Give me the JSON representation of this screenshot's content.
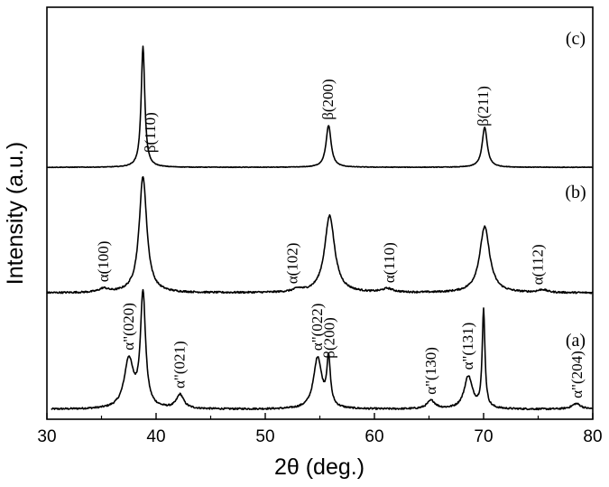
{
  "chart_data": {
    "type": "line",
    "xlabel": "2θ (deg.)",
    "ylabel": "Intensity (a.u.)",
    "xlim": [
      30,
      80
    ],
    "xticks": [
      30,
      40,
      50,
      60,
      70,
      80
    ],
    "xtick_labels": [
      "30",
      "40",
      "50",
      "60",
      "70",
      "80"
    ],
    "grid": false,
    "series": [
      {
        "name": "(a)",
        "baseline": 0,
        "peaks": [
          {
            "x": 37.5,
            "h": 0.52,
            "w": 0.5
          },
          {
            "x": 38.8,
            "h": 1.22,
            "w": 0.28
          },
          {
            "x": 42.2,
            "h": 0.15,
            "w": 0.4
          },
          {
            "x": 54.8,
            "h": 0.55,
            "w": 0.45
          },
          {
            "x": 55.8,
            "h": 0.51,
            "w": 0.2
          },
          {
            "x": 65.2,
            "h": 0.09,
            "w": 0.45
          },
          {
            "x": 68.6,
            "h": 0.35,
            "w": 0.45
          },
          {
            "x": 70.0,
            "h": 1.05,
            "w": 0.15
          },
          {
            "x": 78.5,
            "h": 0.06,
            "w": 0.5
          }
        ],
        "labels": [
          {
            "text": "α\"(020)",
            "x": 37.5
          },
          {
            "text": "α\"(021)",
            "x": 42.2
          },
          {
            "text": "α\"(022)",
            "x": 54.8
          },
          {
            "text": "β(200)",
            "x": 55.9
          },
          {
            "text": "α\"(130)",
            "x": 65.2
          },
          {
            "text": "α\"(131)",
            "x": 68.6
          },
          {
            "text": "α\"(204)",
            "x": 78.6
          }
        ]
      },
      {
        "name": "(b)",
        "baseline": 1.25,
        "peaks": [
          {
            "x": 35.2,
            "h": 0.04,
            "w": 0.5
          },
          {
            "x": 38.8,
            "h": 1.25,
            "w": 0.42
          },
          {
            "x": 53.0,
            "h": 0.03,
            "w": 0.5
          },
          {
            "x": 55.9,
            "h": 0.83,
            "w": 0.55
          },
          {
            "x": 61.2,
            "h": 0.04,
            "w": 0.6
          },
          {
            "x": 70.1,
            "h": 0.71,
            "w": 0.55
          },
          {
            "x": 75.4,
            "h": 0.03,
            "w": 0.5
          }
        ],
        "labels": [
          {
            "text": "α(100)",
            "x": 35.2
          },
          {
            "text": "α(102)",
            "x": 52.5
          },
          {
            "text": "α(110)",
            "x": 61.4
          },
          {
            "text": "α(112)",
            "x": 75.0
          }
        ]
      },
      {
        "name": "(c)",
        "baseline": 2.6,
        "peaks": [
          {
            "x": 38.8,
            "h": 1.3,
            "w": 0.2
          },
          {
            "x": 55.8,
            "h": 0.45,
            "w": 0.28
          },
          {
            "x": 70.1,
            "h": 0.43,
            "w": 0.28
          }
        ],
        "labels": [
          {
            "text": "β(110)",
            "x": 39.5
          },
          {
            "text": "β(200)",
            "x": 55.8
          },
          {
            "text": "β(211)",
            "x": 70.0
          }
        ]
      }
    ]
  }
}
